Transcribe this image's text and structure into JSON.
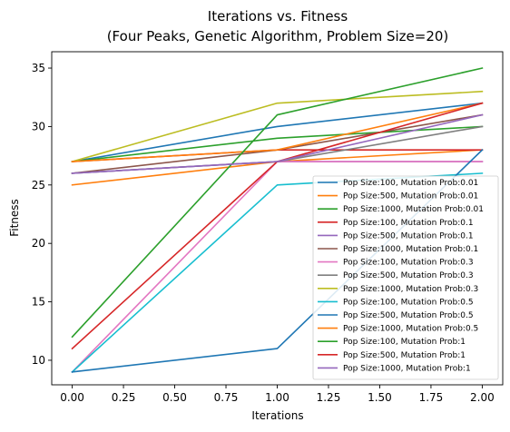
{
  "chart_data": {
    "type": "line",
    "title": "Iterations vs. Fitness",
    "subtitle": "(Four Peaks, Genetic Algorithm, Problem Size=20)",
    "xlabel": "Iterations",
    "ylabel": "Fitness",
    "x": [
      0,
      1,
      2
    ],
    "xlim": [
      -0.1,
      2.1
    ],
    "ylim": [
      7.9,
      36.4
    ],
    "xticks": [
      0.0,
      0.25,
      0.5,
      0.75,
      1.0,
      1.25,
      1.5,
      1.75,
      2.0
    ],
    "xtick_labels": [
      "0.00",
      "0.25",
      "0.50",
      "0.75",
      "1.00",
      "1.25",
      "1.50",
      "1.75",
      "2.00"
    ],
    "yticks": [
      10,
      15,
      20,
      25,
      30,
      35
    ],
    "ytick_labels": [
      "10",
      "15",
      "20",
      "25",
      "30",
      "35"
    ],
    "grid": false,
    "legend_position": "bottom-right",
    "series": [
      {
        "name": "Pop Size:100, Mutation Prob:0.01",
        "color": "#1f77b4",
        "values": [
          27,
          30,
          32
        ]
      },
      {
        "name": "Pop Size:500, Mutation Prob:0.01",
        "color": "#ff7f0e",
        "values": [
          25,
          27,
          28
        ]
      },
      {
        "name": "Pop Size:1000, Mutation Prob:0.01",
        "color": "#2ca02c",
        "values": [
          27,
          29,
          30
        ]
      },
      {
        "name": "Pop Size:100, Mutation Prob:0.1",
        "color": "#d62728",
        "values": [
          27,
          28,
          28
        ]
      },
      {
        "name": "Pop Size:500, Mutation Prob:0.1",
        "color": "#9467bd",
        "values": [
          26,
          27,
          27
        ]
      },
      {
        "name": "Pop Size:1000, Mutation Prob:0.1",
        "color": "#8c564b",
        "values": [
          26,
          28,
          31
        ]
      },
      {
        "name": "Pop Size:100, Mutation Prob:0.3",
        "color": "#e377c2",
        "values": [
          9,
          27,
          27
        ]
      },
      {
        "name": "Pop Size:500, Mutation Prob:0.3",
        "color": "#7f7f7f",
        "values": [
          26,
          27,
          30
        ]
      },
      {
        "name": "Pop Size:1000, Mutation Prob:0.3",
        "color": "#bcbd22",
        "values": [
          27,
          32,
          33
        ]
      },
      {
        "name": "Pop Size:100, Mutation Prob:0.5",
        "color": "#17becf",
        "values": [
          9,
          25,
          26
        ]
      },
      {
        "name": "Pop Size:500, Mutation Prob:0.5",
        "color": "#1f77b4",
        "values": [
          9,
          11,
          28
        ]
      },
      {
        "name": "Pop Size:1000, Mutation Prob:0.5",
        "color": "#ff7f0e",
        "values": [
          27,
          28,
          32
        ]
      },
      {
        "name": "Pop Size:100, Mutation Prob:1",
        "color": "#2ca02c",
        "values": [
          12,
          31,
          35
        ]
      },
      {
        "name": "Pop Size:500, Mutation Prob:1",
        "color": "#d62728",
        "values": [
          11,
          27,
          32
        ]
      },
      {
        "name": "Pop Size:1000, Mutation Prob:1",
        "color": "#9467bd",
        "values": [
          26,
          27,
          31
        ]
      }
    ]
  }
}
